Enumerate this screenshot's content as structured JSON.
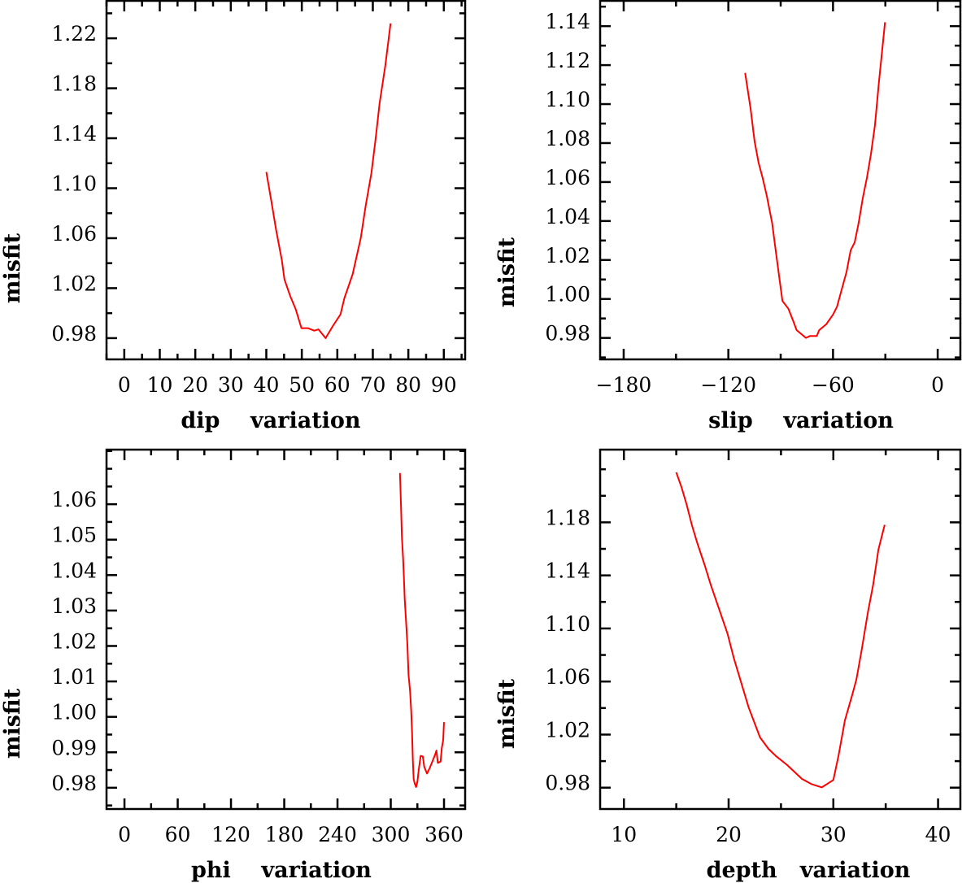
{
  "chart_data": [
    {
      "type": "line",
      "title": "",
      "xlabel": "dip    variation",
      "ylabel": "misfit",
      "xlim": [
        -5,
        96
      ],
      "ylim": [
        0.963,
        1.25
      ],
      "xticks_major": [
        0,
        10,
        20,
        30,
        40,
        50,
        60,
        70,
        80,
        90
      ],
      "xtick_labels": [
        "0",
        "10",
        "20",
        "30",
        "40",
        "50",
        "60",
        "70",
        "80",
        "90"
      ],
      "xtick_minor_step": 5,
      "yticks_major": [
        0.98,
        1.02,
        1.06,
        1.1,
        1.14,
        1.18,
        1.22
      ],
      "ytick_labels": [
        "0.98",
        "1.02",
        "1.06",
        "1.10",
        "1.14",
        "1.18",
        "1.22"
      ],
      "ytick_minor_step": 0.02,
      "grid": false,
      "series": [
        {
          "name": "misfit",
          "color": "#ff0000",
          "x": [
            40.0,
            41.4,
            42.8,
            44.4,
            45.1,
            46.7,
            48.3,
            49.9,
            51.7,
            53.5,
            54.7,
            56.7,
            58.8,
            60.9,
            62.0,
            64.3,
            66.6,
            68.0,
            69.6,
            70.8,
            71.9,
            73.5,
            75.0
          ],
          "y": [
            1.113,
            1.09,
            1.066,
            1.042,
            1.027,
            1.014,
            1.003,
            0.988,
            0.988,
            0.986,
            0.987,
            0.98,
            0.99,
            0.999,
            1.012,
            1.031,
            1.06,
            1.086,
            1.112,
            1.14,
            1.168,
            1.198,
            1.232
          ]
        }
      ]
    },
    {
      "type": "line",
      "title": "",
      "xlabel": "slip    variation",
      "ylabel": "misfit",
      "xlim": [
        -193.5,
        13
      ],
      "ylim": [
        0.969,
        1.153
      ],
      "xticks_major": [
        -180,
        -120,
        -60,
        0
      ],
      "xtick_labels": [
        "−180",
        "−120",
        "−60",
        "0"
      ],
      "xtick_minor_step": 30,
      "yticks_major": [
        0.98,
        1.0,
        1.02,
        1.04,
        1.06,
        1.08,
        1.1,
        1.12,
        1.14
      ],
      "ytick_labels": [
        "0.98",
        "1.00",
        "1.02",
        "1.04",
        "1.06",
        "1.08",
        "1.10",
        "1.12",
        "1.14"
      ],
      "ytick_minor_step": 0.01,
      "grid": false,
      "series": [
        {
          "name": "misfit",
          "color": "#ff0000",
          "x": [
            -110.4,
            -107.3,
            -105.0,
            -102.7,
            -100.3,
            -98.0,
            -94.9,
            -92.6,
            -90.2,
            -89.0,
            -85.6,
            -82.5,
            -80.9,
            -75.5,
            -73.2,
            -69.3,
            -67.9,
            -63.9,
            -60.0,
            -57.7,
            -55.3,
            -52.2,
            -49.9,
            -47.6,
            -45.3,
            -42.9,
            -40.6,
            -38.3,
            -36.0,
            -33.6,
            -32.1,
            -30.2
          ],
          "y": [
            1.116,
            1.098,
            1.081,
            1.07,
            1.062,
            1.053,
            1.039,
            1.023,
            1.007,
            0.999,
            0.995,
            0.988,
            0.984,
            0.98,
            0.981,
            0.981,
            0.984,
            0.987,
            0.992,
            0.996,
            1.004,
            1.014,
            1.025,
            1.029,
            1.039,
            1.052,
            1.062,
            1.074,
            1.089,
            1.112,
            1.125,
            1.142
          ]
        }
      ]
    },
    {
      "type": "line",
      "title": "",
      "xlabel": "phi    variation",
      "ylabel": "misfit",
      "xlim": [
        -20.2,
        383.8
      ],
      "ylim": [
        0.974,
        1.0754
      ],
      "xticks_major": [
        0,
        60,
        120,
        180,
        240,
        300,
        360
      ],
      "xtick_labels": [
        "0",
        "60",
        "120",
        "180",
        "240",
        "300",
        "360"
      ],
      "xtick_minor_step": 30,
      "yticks_major": [
        0.98,
        0.99,
        1.0,
        1.01,
        1.02,
        1.03,
        1.04,
        1.05,
        1.06
      ],
      "ytick_labels": [
        "0.98",
        "0.99",
        "1.00",
        "1.01",
        "1.02",
        "1.03",
        "1.04",
        "1.05",
        "1.06"
      ],
      "ytick_minor_step": 0.005,
      "grid": false,
      "series": [
        {
          "name": "misfit",
          "color": "#ff0000",
          "x": [
            310.3,
            310.8,
            311.7,
            312.6,
            313.9,
            314.8,
            315.7,
            316.9,
            317.9,
            318.8,
            320.0,
            321.8,
            323.1,
            324.0,
            324.9,
            325.8,
            327.0,
            328.6,
            330.0,
            331.6,
            333.7,
            336.2,
            337.7,
            340.8,
            343.8,
            346.9,
            349.9,
            351.5,
            353.0,
            356.1,
            357.5,
            359.1,
            360.0
          ],
          "y": [
            1.0688,
            1.0657,
            1.0581,
            1.0504,
            1.0447,
            1.0393,
            1.0332,
            1.0282,
            1.024,
            1.0202,
            1.0118,
            1.0072,
            1.0015,
            0.9958,
            0.9877,
            0.9824,
            0.9812,
            0.9802,
            0.9817,
            0.9852,
            0.989,
            0.9888,
            0.9859,
            0.984,
            0.9855,
            0.9874,
            0.9893,
            0.9905,
            0.987,
            0.9874,
            0.9912,
            0.9935,
            0.9985
          ]
        }
      ]
    },
    {
      "type": "line",
      "title": "",
      "xlabel": "depth   variation",
      "ylabel": "misfit",
      "xlim": [
        7.73,
        42.13
      ],
      "ylim": [
        0.9639,
        1.2348
      ],
      "xticks_major": [
        10,
        20,
        30,
        40
      ],
      "xtick_labels": [
        "10",
        "20",
        "30",
        "40"
      ],
      "xtick_minor_step": 5,
      "yticks_major": [
        0.98,
        1.02,
        1.06,
        1.1,
        1.14,
        1.18
      ],
      "ytick_labels": [
        "0.98",
        "1.02",
        "1.06",
        "1.10",
        "1.14",
        "1.18"
      ],
      "ytick_minor_step": 0.02,
      "grid": false,
      "series": [
        {
          "name": "misfit",
          "color": "#ff0000",
          "x": [
            15.0,
            15.5,
            16.0,
            16.5,
            17.0,
            17.7,
            18.3,
            19.1,
            19.9,
            20.5,
            21.2,
            21.9,
            23.0,
            23.8,
            24.5,
            25.6,
            27.0,
            27.9,
            28.9,
            30.0,
            30.5,
            31.1,
            31.8,
            32.2,
            32.7,
            33.3,
            33.8,
            34.3,
            34.9
          ],
          "y": [
            1.2177,
            1.2064,
            1.1931,
            1.1778,
            1.1645,
            1.1481,
            1.1328,
            1.1144,
            1.096,
            1.0775,
            1.0591,
            1.0407,
            1.0179,
            1.0093,
            1.0039,
            0.997,
            0.9866,
            0.9827,
            0.9802,
            0.9858,
            1.0042,
            1.0307,
            1.0499,
            1.0614,
            1.0837,
            1.1123,
            1.1328,
            1.1594,
            1.1781
          ]
        }
      ]
    }
  ]
}
